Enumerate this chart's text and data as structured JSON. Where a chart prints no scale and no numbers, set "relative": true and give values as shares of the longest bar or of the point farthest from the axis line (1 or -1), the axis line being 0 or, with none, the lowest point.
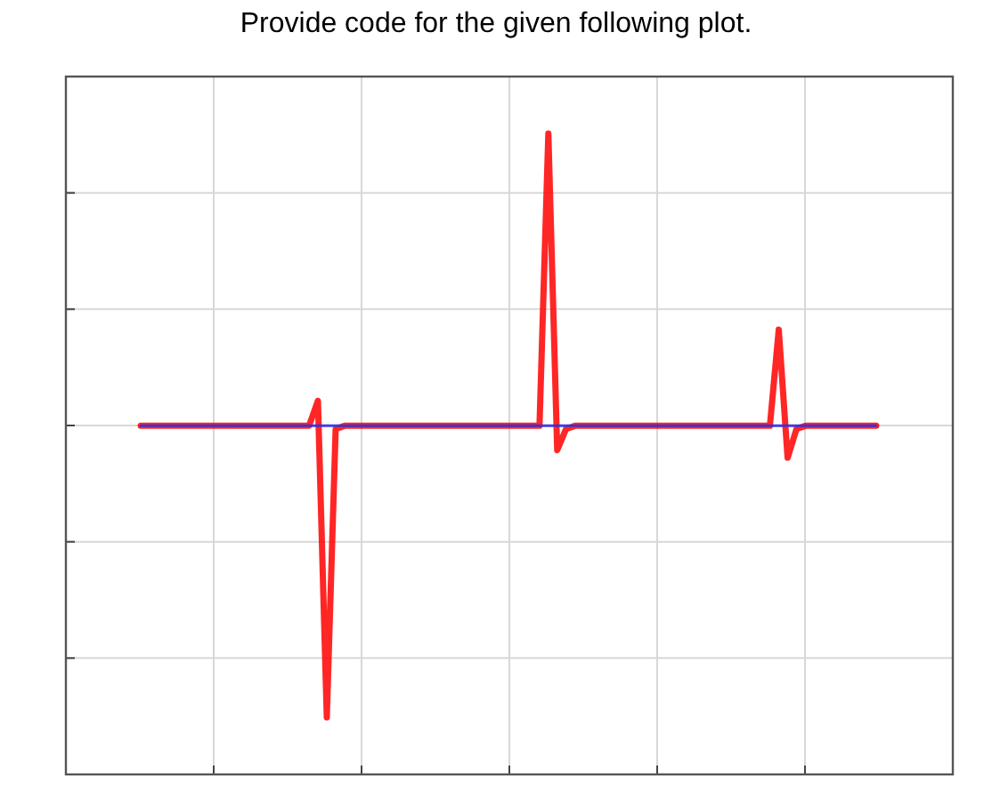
{
  "chart_data": {
    "type": "line",
    "title": "Provide code for the given following plot.",
    "relative": true,
    "grid": true,
    "marker": "none",
    "line_style": "solid",
    "categories": [
      null,
      null,
      null,
      null,
      null,
      null,
      null,
      null,
      null,
      null,
      null,
      null,
      null,
      null,
      null,
      null,
      null,
      null,
      null,
      null,
      null,
      null,
      null,
      null,
      null,
      null,
      null,
      null,
      null,
      null,
      null,
      null,
      null,
      null,
      null,
      null,
      null,
      null,
      null,
      null,
      null,
      null,
      null,
      null,
      null,
      null,
      null,
      null,
      null,
      null,
      null,
      null,
      null,
      null,
      null,
      null,
      null,
      null,
      null,
      null,
      null,
      null,
      null,
      null,
      null,
      null,
      null,
      null,
      null,
      null,
      null,
      null,
      null,
      null,
      null,
      null,
      null,
      null,
      null,
      null,
      null,
      null,
      null,
      null
    ],
    "series": [
      {
        "color": "#3030e0",
        "values": [
          0.544,
          0.544,
          0.544,
          0.544,
          0.544,
          0.544,
          0.544,
          0.544,
          0.544,
          0.544,
          0.544,
          0.544,
          0.544,
          0.544,
          0.544,
          0.544,
          0.544,
          0.544,
          0.544,
          0.544,
          0.544,
          0.544,
          0.544,
          0.544,
          0.544,
          0.544,
          0.544,
          0.544,
          0.544,
          0.544,
          0.544,
          0.544,
          0.544,
          0.544,
          0.544,
          0.544,
          0.544,
          0.544,
          0.544,
          0.544,
          0.544,
          0.544,
          0.544,
          0.544,
          0.544,
          0.544,
          0.544,
          0.544,
          0.544,
          0.544,
          0.544,
          0.544,
          0.544,
          0.544,
          0.544,
          0.544,
          0.544,
          0.544,
          0.544,
          0.544,
          0.544,
          0.544,
          0.544,
          0.544,
          0.544,
          0.544,
          0.544,
          0.544,
          0.544,
          0.544,
          0.544,
          0.544,
          0.544,
          0.544,
          0.544,
          0.544,
          0.544,
          0.544,
          0.544,
          0.544,
          0.544,
          0.544,
          0.544,
          0.544
        ]
      },
      {
        "color": "#ff0000",
        "values": [
          0.544,
          0.544,
          0.544,
          0.544,
          0.544,
          0.544,
          0.544,
          0.544,
          0.544,
          0.544,
          0.544,
          0.544,
          0.544,
          0.544,
          0.544,
          0.544,
          0.544,
          0.544,
          0.544,
          0.544,
          0.583,
          0.089,
          0.539,
          0.544,
          0.544,
          0.544,
          0.544,
          0.544,
          0.544,
          0.544,
          0.544,
          0.544,
          0.544,
          0.544,
          0.544,
          0.544,
          0.544,
          0.544,
          0.544,
          0.544,
          0.544,
          0.544,
          0.544,
          0.544,
          0.544,
          0.544,
          1,
          0.506,
          0.539,
          0.544,
          0.544,
          0.544,
          0.544,
          0.544,
          0.544,
          0.544,
          0.544,
          0.544,
          0.544,
          0.544,
          0.544,
          0.544,
          0.544,
          0.544,
          0.544,
          0.544,
          0.544,
          0.544,
          0.544,
          0.544,
          0.544,
          0.544,
          0.694,
          0.494,
          0.539,
          0.544,
          0.544,
          0.544,
          0.544,
          0.544,
          0.544,
          0.544,
          0.544,
          0.544
        ]
      }
    ]
  }
}
